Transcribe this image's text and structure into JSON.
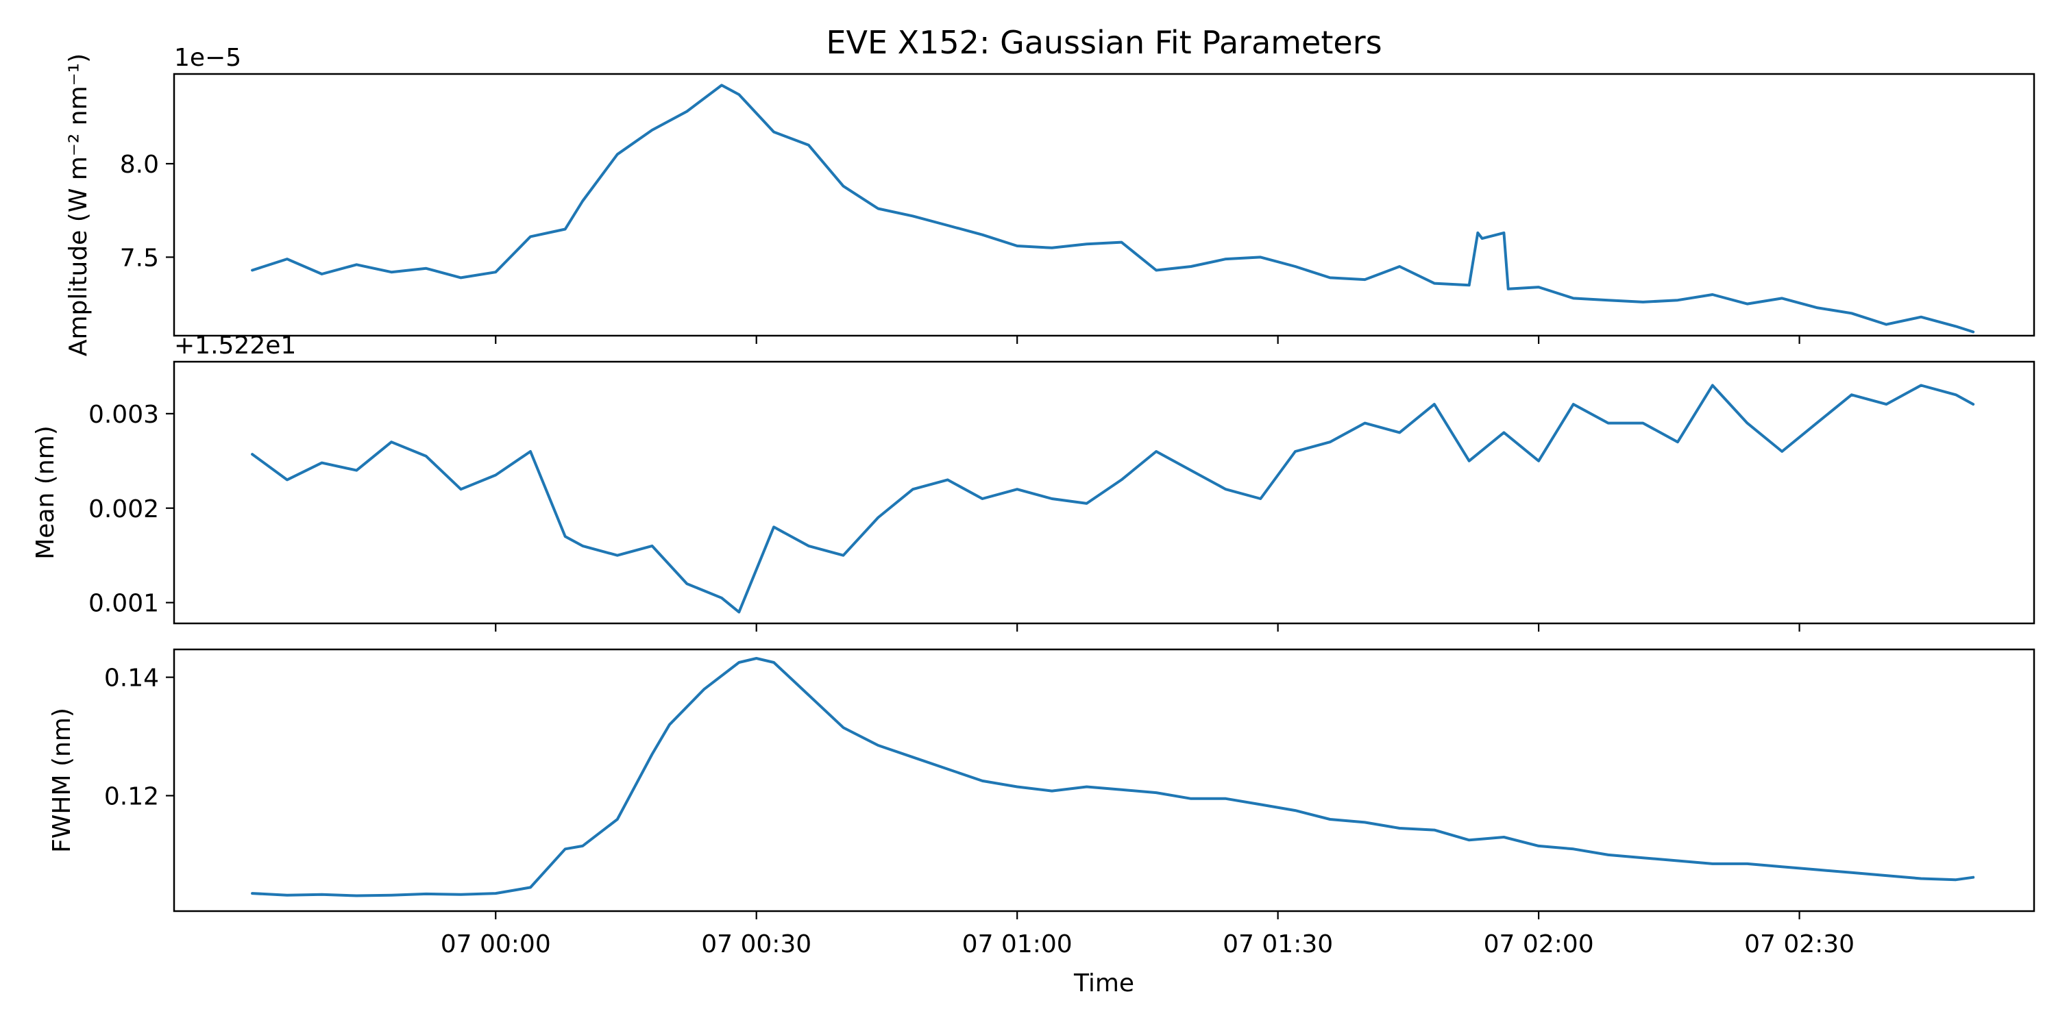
{
  "chart_data": {
    "type": "line",
    "title": "EVE X152: Gaussian Fit Parameters",
    "xlabel": "Time",
    "x_ticks": [
      "07 00:00",
      "07 00:30",
      "07 01:00",
      "07 01:30",
      "07 02:00",
      "07 02:30"
    ],
    "xlim": [
      "06 23:30",
      "07 03:00"
    ],
    "series_color": "#1f77b4",
    "panels": [
      {
        "ylabel": "Amplitude (W m⁻² nm⁻¹)",
        "offset_text": "1e−5",
        "y_ticks": [
          "7.5",
          "8.0"
        ],
        "y_tick_values": [
          7.5,
          8.0
        ],
        "ylim": [
          7.08,
          8.48
        ],
        "x_minutes": [
          -28,
          -24,
          -20,
          -16,
          -12,
          -8,
          -4,
          0,
          4,
          8,
          10,
          14,
          18,
          22,
          26,
          28,
          32,
          36,
          40,
          44,
          48,
          52,
          56,
          60,
          64,
          68,
          72,
          76,
          80,
          84,
          88,
          92,
          96,
          100,
          104,
          108,
          112,
          113,
          113.5,
          116,
          116.5,
          120,
          124,
          128,
          132,
          136,
          140,
          144,
          148,
          152,
          156,
          160,
          164,
          168,
          170
        ],
        "values": [
          7.43,
          7.49,
          7.41,
          7.46,
          7.42,
          7.44,
          7.39,
          7.42,
          7.61,
          7.65,
          7.8,
          8.05,
          8.18,
          8.28,
          8.42,
          8.37,
          8.17,
          8.1,
          7.88,
          7.76,
          7.72,
          7.67,
          7.62,
          7.56,
          7.55,
          7.57,
          7.58,
          7.43,
          7.45,
          7.49,
          7.5,
          7.45,
          7.39,
          7.38,
          7.45,
          7.36,
          7.35,
          7.63,
          7.6,
          7.63,
          7.33,
          7.34,
          7.28,
          7.27,
          7.26,
          7.27,
          7.3,
          7.25,
          7.28,
          7.23,
          7.2,
          7.14,
          7.18,
          7.13,
          7.1
        ]
      },
      {
        "ylabel": "Mean (nm)",
        "offset_text": "+1.522e1",
        "y_ticks": [
          "0.001",
          "0.002",
          "0.003"
        ],
        "y_tick_values": [
          0.001,
          0.002,
          0.003
        ],
        "ylim": [
          0.00078,
          0.00355
        ],
        "x_minutes": [
          -28,
          -24,
          -20,
          -16,
          -12,
          -8,
          -4,
          0,
          4,
          8,
          10,
          14,
          18,
          22,
          26,
          28,
          30,
          32,
          36,
          40,
          44,
          48,
          52,
          56,
          60,
          64,
          68,
          72,
          76,
          80,
          84,
          88,
          92,
          96,
          100,
          104,
          108,
          112,
          116,
          120,
          124,
          128,
          132,
          136,
          140,
          144,
          148,
          152,
          156,
          160,
          164,
          168,
          170
        ],
        "values": [
          0.00257,
          0.0023,
          0.00248,
          0.0024,
          0.0027,
          0.00255,
          0.0022,
          0.00235,
          0.0026,
          0.0017,
          0.0016,
          0.0015,
          0.0016,
          0.0012,
          0.00105,
          0.0009,
          0.00135,
          0.0018,
          0.0016,
          0.0015,
          0.0019,
          0.0022,
          0.0023,
          0.0021,
          0.0022,
          0.0021,
          0.00205,
          0.0023,
          0.0026,
          0.0024,
          0.0022,
          0.0021,
          0.0026,
          0.0027,
          0.0029,
          0.0028,
          0.0031,
          0.0025,
          0.0028,
          0.0025,
          0.0031,
          0.0029,
          0.0029,
          0.0027,
          0.0033,
          0.0029,
          0.0026,
          0.0029,
          0.0032,
          0.0031,
          0.0033,
          0.0032,
          0.0031
        ]
      },
      {
        "ylabel": "FWHM (nm)",
        "offset_text": "",
        "y_ticks": [
          "0.12",
          "0.14"
        ],
        "y_tick_values": [
          0.12,
          0.14
        ],
        "ylim": [
          0.1005,
          0.1447
        ],
        "x_minutes": [
          -28,
          -24,
          -20,
          -16,
          -12,
          -8,
          -4,
          0,
          4,
          8,
          10,
          14,
          18,
          20,
          24,
          28,
          30,
          32,
          36,
          40,
          44,
          48,
          52,
          56,
          60,
          64,
          68,
          72,
          76,
          80,
          84,
          88,
          92,
          96,
          100,
          104,
          108,
          112,
          116,
          120,
          124,
          128,
          132,
          136,
          140,
          144,
          148,
          152,
          156,
          160,
          164,
          168,
          170
        ],
        "values": [
          0.1035,
          0.1032,
          0.1033,
          0.1031,
          0.1032,
          0.1034,
          0.1033,
          0.1035,
          0.1045,
          0.111,
          0.1115,
          0.116,
          0.127,
          0.132,
          0.138,
          0.1425,
          0.1432,
          0.1425,
          0.137,
          0.1315,
          0.1285,
          0.1265,
          0.1245,
          0.1225,
          0.1215,
          0.1208,
          0.1215,
          0.121,
          0.1205,
          0.1195,
          0.1195,
          0.1185,
          0.1175,
          0.116,
          0.1155,
          0.1145,
          0.1142,
          0.1125,
          0.113,
          0.1115,
          0.111,
          0.11,
          0.1095,
          0.109,
          0.1085,
          0.1085,
          0.108,
          0.1075,
          0.107,
          0.1065,
          0.106,
          0.1058,
          0.1062
        ]
      }
    ]
  }
}
